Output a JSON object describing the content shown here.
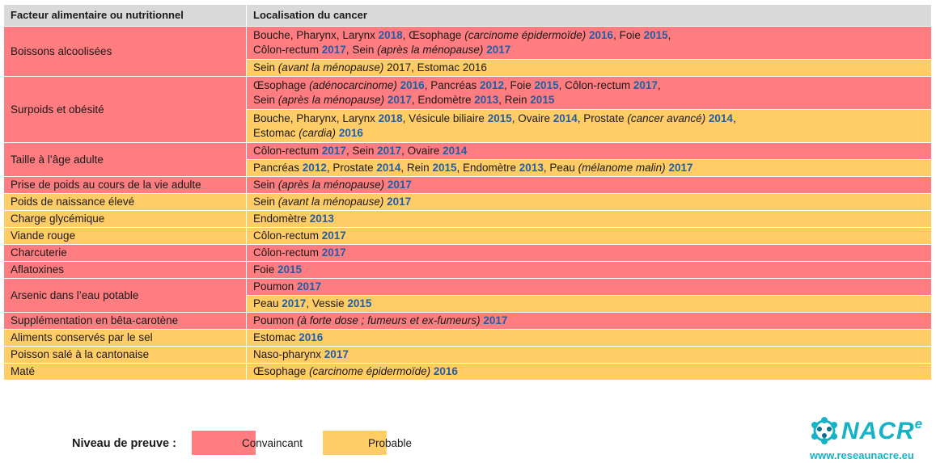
{
  "header": {
    "col1": "Facteur alimentaire ou nutritionnel",
    "col2": "Localisation du cancer"
  },
  "rows": [
    {
      "factor": "Boissons alcoolisées",
      "conv": [
        {
          "t": "Bouche, Pharynx, Larynx "
        },
        {
          "t": "2018",
          "y": 1
        },
        {
          "t": ", Œsophage "
        },
        {
          "t": "(carcinome épidermoïde)",
          "i": 1
        },
        {
          "t": " "
        },
        {
          "t": "2016",
          "y": 1
        },
        {
          "t": ", Foie "
        },
        {
          "t": "2015",
          "y": 1
        },
        {
          "t": ","
        },
        {
          "br": 1
        },
        {
          "t": "Côlon-rectum "
        },
        {
          "t": "2017",
          "y": 1
        },
        {
          "t": ", Sein "
        },
        {
          "t": "(après la ménopause)",
          "i": 1
        },
        {
          "t": " "
        },
        {
          "t": "2017",
          "y": 1
        }
      ],
      "prob": [
        {
          "t": "Sein "
        },
        {
          "t": "(avant la ménopause)",
          "i": 1
        },
        {
          "t": " 2017, Estomac 2016"
        }
      ]
    },
    {
      "factor": "Surpoids et obésité",
      "conv": [
        {
          "t": "Œsophage "
        },
        {
          "t": "(adénocarcinome)",
          "i": 1
        },
        {
          "t": " "
        },
        {
          "t": "2016",
          "y": 1
        },
        {
          "t": ", Pancréas "
        },
        {
          "t": "2012",
          "y": 1
        },
        {
          "t": ", Foie "
        },
        {
          "t": "2015",
          "y": 1
        },
        {
          "t": ", Côlon-rectum "
        },
        {
          "t": "2017",
          "y": 1
        },
        {
          "t": ","
        },
        {
          "br": 1
        },
        {
          "t": "Sein "
        },
        {
          "t": "(après la ménopause)",
          "i": 1
        },
        {
          "t": " "
        },
        {
          "t": "2017",
          "y": 1
        },
        {
          "t": ", Endomètre "
        },
        {
          "t": "2013",
          "y": 1
        },
        {
          "t": ", Rein "
        },
        {
          "t": "2015",
          "y": 1
        }
      ],
      "prob": [
        {
          "t": "Bouche, Pharynx, Larynx "
        },
        {
          "t": "2018",
          "y": 1
        },
        {
          "t": ", Vésicule biliaire "
        },
        {
          "t": "2015",
          "y": 1
        },
        {
          "t": ", Ovaire "
        },
        {
          "t": "2014",
          "y": 1
        },
        {
          "t": ", Prostate "
        },
        {
          "t": "(cancer avancé)",
          "i": 1
        },
        {
          "t": " "
        },
        {
          "t": "2014",
          "y": 1
        },
        {
          "t": ","
        },
        {
          "br": 1
        },
        {
          "t": "Estomac "
        },
        {
          "t": "(cardia)",
          "i": 1
        },
        {
          "t": " "
        },
        {
          "t": "2016",
          "y": 1
        }
      ]
    },
    {
      "factor": "Taille à l’âge adulte",
      "conv": [
        {
          "t": "Côlon-rectum "
        },
        {
          "t": "2017",
          "y": 1
        },
        {
          "t": ", Sein "
        },
        {
          "t": "2017",
          "y": 1
        },
        {
          "t": ", Ovaire "
        },
        {
          "t": "2014",
          "y": 1
        }
      ],
      "prob": [
        {
          "t": "Pancréas "
        },
        {
          "t": "2012",
          "y": 1
        },
        {
          "t": ", Prostate "
        },
        {
          "t": "2014",
          "y": 1
        },
        {
          "t": ", Rein "
        },
        {
          "t": "2015",
          "y": 1
        },
        {
          "t": ", Endomètre "
        },
        {
          "t": "2013",
          "y": 1
        },
        {
          "t": ", Peau "
        },
        {
          "t": "(mélanome malin)",
          "i": 1
        },
        {
          "t": " "
        },
        {
          "t": "2017",
          "y": 1
        }
      ]
    },
    {
      "factor": "Prise de poids au cours de la vie adulte",
      "level": "conv",
      "loc": [
        {
          "t": "Sein "
        },
        {
          "t": "(après la ménopause)",
          "i": 1
        },
        {
          "t": " "
        },
        {
          "t": "2017",
          "y": 1
        }
      ]
    },
    {
      "factor": "Poids de naissance élevé",
      "level": "prob",
      "loc": [
        {
          "t": "Sein "
        },
        {
          "t": "(avant la ménopause)",
          "i": 1
        },
        {
          "t": " "
        },
        {
          "t": "2017",
          "y": 1
        }
      ]
    },
    {
      "factor": "Charge glycémique",
      "level": "prob",
      "loc": [
        {
          "t": "Endomètre "
        },
        {
          "t": "2013",
          "y": 1
        }
      ]
    },
    {
      "factor": "Viande rouge",
      "level": "prob",
      "loc": [
        {
          "t": "Côlon-rectum "
        },
        {
          "t": "2017",
          "y": 1
        }
      ]
    },
    {
      "factor": "Charcuterie",
      "level": "conv",
      "loc": [
        {
          "t": "Côlon-rectum "
        },
        {
          "t": "2017",
          "y": 1
        }
      ]
    },
    {
      "factor": "Aflatoxines",
      "level": "conv",
      "loc": [
        {
          "t": "Foie "
        },
        {
          "t": "2015",
          "y": 1
        }
      ]
    },
    {
      "factor": "Arsenic dans l’eau potable",
      "conv": [
        {
          "t": "Poumon "
        },
        {
          "t": "2017",
          "y": 1
        }
      ],
      "prob": [
        {
          "t": "Peau "
        },
        {
          "t": "2017",
          "y": 1
        },
        {
          "t": ", Vessie "
        },
        {
          "t": "2015",
          "y": 1
        }
      ]
    },
    {
      "factor": "Supplémentation en bêta-carotène",
      "level": "conv",
      "loc": [
        {
          "t": "Poumon "
        },
        {
          "t": "(à forte dose ; fumeurs et ex-fumeurs)",
          "i": 1
        },
        {
          "t": " "
        },
        {
          "t": "2017",
          "y": 1
        }
      ]
    },
    {
      "factor": "Aliments conservés par le sel",
      "level": "prob",
      "loc": [
        {
          "t": "Estomac "
        },
        {
          "t": "2016",
          "y": 1
        }
      ]
    },
    {
      "factor": "Poisson salé à la cantonaise",
      "level": "prob",
      "loc": [
        {
          "t": "Naso-pharynx "
        },
        {
          "t": "2017",
          "y": 1
        }
      ]
    },
    {
      "factor": "Maté",
      "level": "prob",
      "loc": [
        {
          "t": "Œsophage "
        },
        {
          "t": "(carcinome épidermoïde)",
          "i": 1
        },
        {
          "t": " "
        },
        {
          "t": "2016",
          "y": 1
        }
      ]
    }
  ],
  "legend": {
    "title": "Niveau de preuve :",
    "convaincant": "Convaincant",
    "probable": "Probable"
  },
  "colors": {
    "convaincant": "#ff7c80",
    "probable": "#ffcc66",
    "year": "#1f5fa8",
    "header": "#d9d9d9",
    "brand": "#16b3c6"
  },
  "brand": {
    "name": "NACR",
    "sup": "e",
    "url": "www.reseaunacre.eu",
    "logo_icon": "flower-network-icon"
  }
}
